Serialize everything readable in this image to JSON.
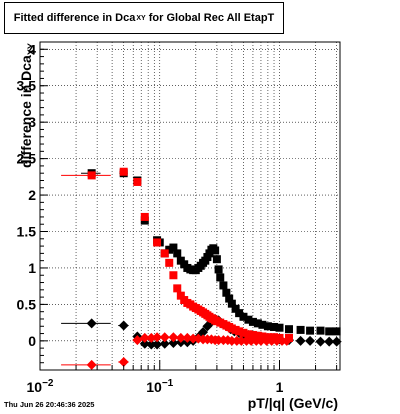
{
  "title": {
    "main": "Fitted difference in Dca",
    "sub": "XY",
    "suffix": " for Global Rec All EtapT"
  },
  "timestamp": "Thu Jun 26 20:46:36 2025",
  "chart_data": {
    "type": "scatter",
    "xscale": "log",
    "xlim": [
      0.01,
      3.2
    ],
    "ylim": [
      -0.4,
      4.1
    ],
    "grid": true,
    "xlabel": "pT/|q| (GeV/c)",
    "ylabel": {
      "main": "difference in Dca",
      "sub": "XY"
    },
    "yticks": [
      0,
      0.5,
      1,
      1.5,
      2,
      2.5,
      3,
      3.5,
      4
    ],
    "ytick_labels": [
      "0",
      "0.5",
      "1",
      "1.5",
      "2",
      "2.5",
      "3",
      "3.5",
      "4"
    ],
    "xticks_major": [
      0.01,
      0.1,
      1
    ],
    "xtick_labels": [
      {
        "base": "10",
        "exp": "−2"
      },
      {
        "base": "10",
        "exp": "−1"
      },
      {
        "base": "1",
        "exp": ""
      }
    ],
    "colors": {
      "black": "#000000",
      "red": "#ff0000"
    },
    "series": [
      {
        "marker": "square",
        "color": "#000000",
        "x": [
          0.027,
          0.05,
          0.065,
          0.075,
          0.095,
          0.1,
          0.11,
          0.12,
          0.13,
          0.14,
          0.15,
          0.16,
          0.17,
          0.18,
          0.19,
          0.2,
          0.21,
          0.22,
          0.23,
          0.24,
          0.25,
          0.26,
          0.27,
          0.28,
          0.29,
          0.3,
          0.31,
          0.32,
          0.34,
          0.36,
          0.38,
          0.4,
          0.43,
          0.46,
          0.5,
          0.55,
          0.6,
          0.66,
          0.72,
          0.8,
          0.9,
          1.0,
          1.2,
          1.5,
          1.8,
          2.2,
          2.6,
          3.0
        ],
        "y": [
          2.3,
          2.3,
          2.2,
          1.65,
          1.38,
          1.35,
          1.2,
          1.25,
          1.28,
          1.2,
          1.1,
          1.05,
          1.0,
          0.98,
          0.97,
          0.97,
          1.0,
          1.03,
          1.07,
          1.1,
          1.15,
          1.2,
          1.25,
          1.27,
          1.24,
          1.12,
          0.98,
          0.87,
          0.76,
          0.66,
          0.58,
          0.51,
          0.44,
          0.38,
          0.33,
          0.29,
          0.26,
          0.24,
          0.22,
          0.2,
          0.19,
          0.18,
          0.16,
          0.15,
          0.14,
          0.14,
          0.13,
          0.13
        ],
        "xerr": [
          0.005,
          0.004,
          0.003,
          0.003,
          0.003,
          0,
          0,
          0,
          0,
          0,
          0,
          0,
          0,
          0,
          0,
          0,
          0,
          0,
          0,
          0,
          0,
          0,
          0,
          0,
          0,
          0,
          0,
          0,
          0,
          0,
          0,
          0,
          0,
          0,
          0,
          0,
          0,
          0,
          0,
          0,
          0,
          0,
          0,
          0,
          0,
          0,
          0,
          0
        ]
      },
      {
        "marker": "diamond",
        "color": "#000000",
        "x": [
          0.027,
          0.05,
          0.065,
          0.075,
          0.085,
          0.095,
          0.11,
          0.13,
          0.15,
          0.17,
          0.19,
          0.21,
          0.23,
          0.25,
          0.27,
          0.29,
          0.31,
          0.33,
          0.36,
          0.39,
          0.42,
          0.46,
          0.5,
          0.55,
          0.6,
          0.66,
          0.72,
          0.8,
          0.9,
          1.0,
          1.2,
          1.5,
          1.8,
          2.2,
          2.6,
          3.0
        ],
        "y": [
          0.24,
          0.21,
          0.06,
          -0.04,
          -0.05,
          -0.05,
          -0.04,
          -0.03,
          -0.02,
          -0.02,
          0.0,
          0.05,
          0.12,
          0.2,
          0.26,
          0.3,
          0.28,
          0.24,
          0.2,
          0.16,
          0.13,
          0.11,
          0.09,
          0.08,
          0.07,
          0.06,
          0.05,
          0.04,
          0.03,
          0.02,
          0.01,
          0.0,
          0.0,
          -0.01,
          -0.01,
          -0.01
        ],
        "xerr": [
          0.012,
          0.005,
          0.003,
          0.003,
          0.003,
          0,
          0,
          0,
          0,
          0,
          0,
          0,
          0,
          0,
          0,
          0,
          0,
          0,
          0,
          0,
          0,
          0,
          0,
          0,
          0,
          0,
          0,
          0,
          0,
          0,
          0,
          0,
          0,
          0,
          0,
          0
        ]
      },
      {
        "marker": "square",
        "color": "#ff0000",
        "x": [
          0.027,
          0.05,
          0.065,
          0.075,
          0.095,
          0.11,
          0.12,
          0.13,
          0.14,
          0.15,
          0.16,
          0.17,
          0.18,
          0.19,
          0.2,
          0.21,
          0.22,
          0.23,
          0.24,
          0.25,
          0.26,
          0.27,
          0.28,
          0.29,
          0.3,
          0.32,
          0.34,
          0.36,
          0.38,
          0.4,
          0.43,
          0.46,
          0.5,
          0.55,
          0.6,
          0.66,
          0.72,
          0.8,
          0.9,
          1.0,
          1.2
        ],
        "y": [
          2.27,
          2.32,
          2.18,
          1.7,
          1.35,
          1.2,
          1.07,
          0.9,
          0.72,
          0.62,
          0.56,
          0.52,
          0.5,
          0.47,
          0.45,
          0.43,
          0.41,
          0.39,
          0.37,
          0.35,
          0.33,
          0.31,
          0.3,
          0.28,
          0.27,
          0.25,
          0.23,
          0.21,
          0.19,
          0.17,
          0.15,
          0.13,
          0.11,
          0.09,
          0.08,
          0.07,
          0.06,
          0.05,
          0.05,
          0.04,
          0.04
        ],
        "xerr": [
          0.012,
          0.004,
          0.003,
          0.003,
          0.003,
          0,
          0,
          0,
          0,
          0,
          0,
          0,
          0,
          0,
          0,
          0,
          0,
          0,
          0,
          0,
          0,
          0,
          0,
          0,
          0,
          0,
          0,
          0,
          0,
          0,
          0,
          0,
          0,
          0,
          0,
          0,
          0,
          0,
          0,
          0,
          0
        ]
      },
      {
        "marker": "diamond",
        "color": "#ff0000",
        "x": [
          0.027,
          0.05,
          0.065,
          0.075,
          0.085,
          0.095,
          0.11,
          0.13,
          0.15,
          0.17,
          0.19,
          0.21,
          0.23,
          0.25,
          0.27,
          0.29,
          0.31,
          0.34,
          0.37,
          0.4,
          0.44,
          0.48,
          0.53,
          0.58,
          0.64,
          0.7,
          0.78,
          0.86,
          0.95,
          1.05,
          1.15
        ],
        "y": [
          -0.33,
          -0.29,
          0.01,
          0.04,
          0.04,
          0.05,
          0.05,
          0.05,
          0.04,
          0.04,
          0.03,
          0.03,
          0.02,
          0.02,
          0.02,
          0.01,
          0.01,
          0.01,
          0.01,
          0.0,
          0.0,
          0.0,
          0.0,
          0.0,
          0.0,
          0.0,
          0.0,
          0.0,
          0.0,
          0.0,
          0.0
        ],
        "xerr": [
          0.012,
          0.005,
          0.003,
          0.003,
          0.003,
          0,
          0,
          0,
          0,
          0,
          0,
          0,
          0,
          0,
          0,
          0,
          0,
          0,
          0,
          0,
          0,
          0,
          0,
          0,
          0,
          0,
          0,
          0,
          0,
          0,
          0
        ]
      }
    ]
  }
}
